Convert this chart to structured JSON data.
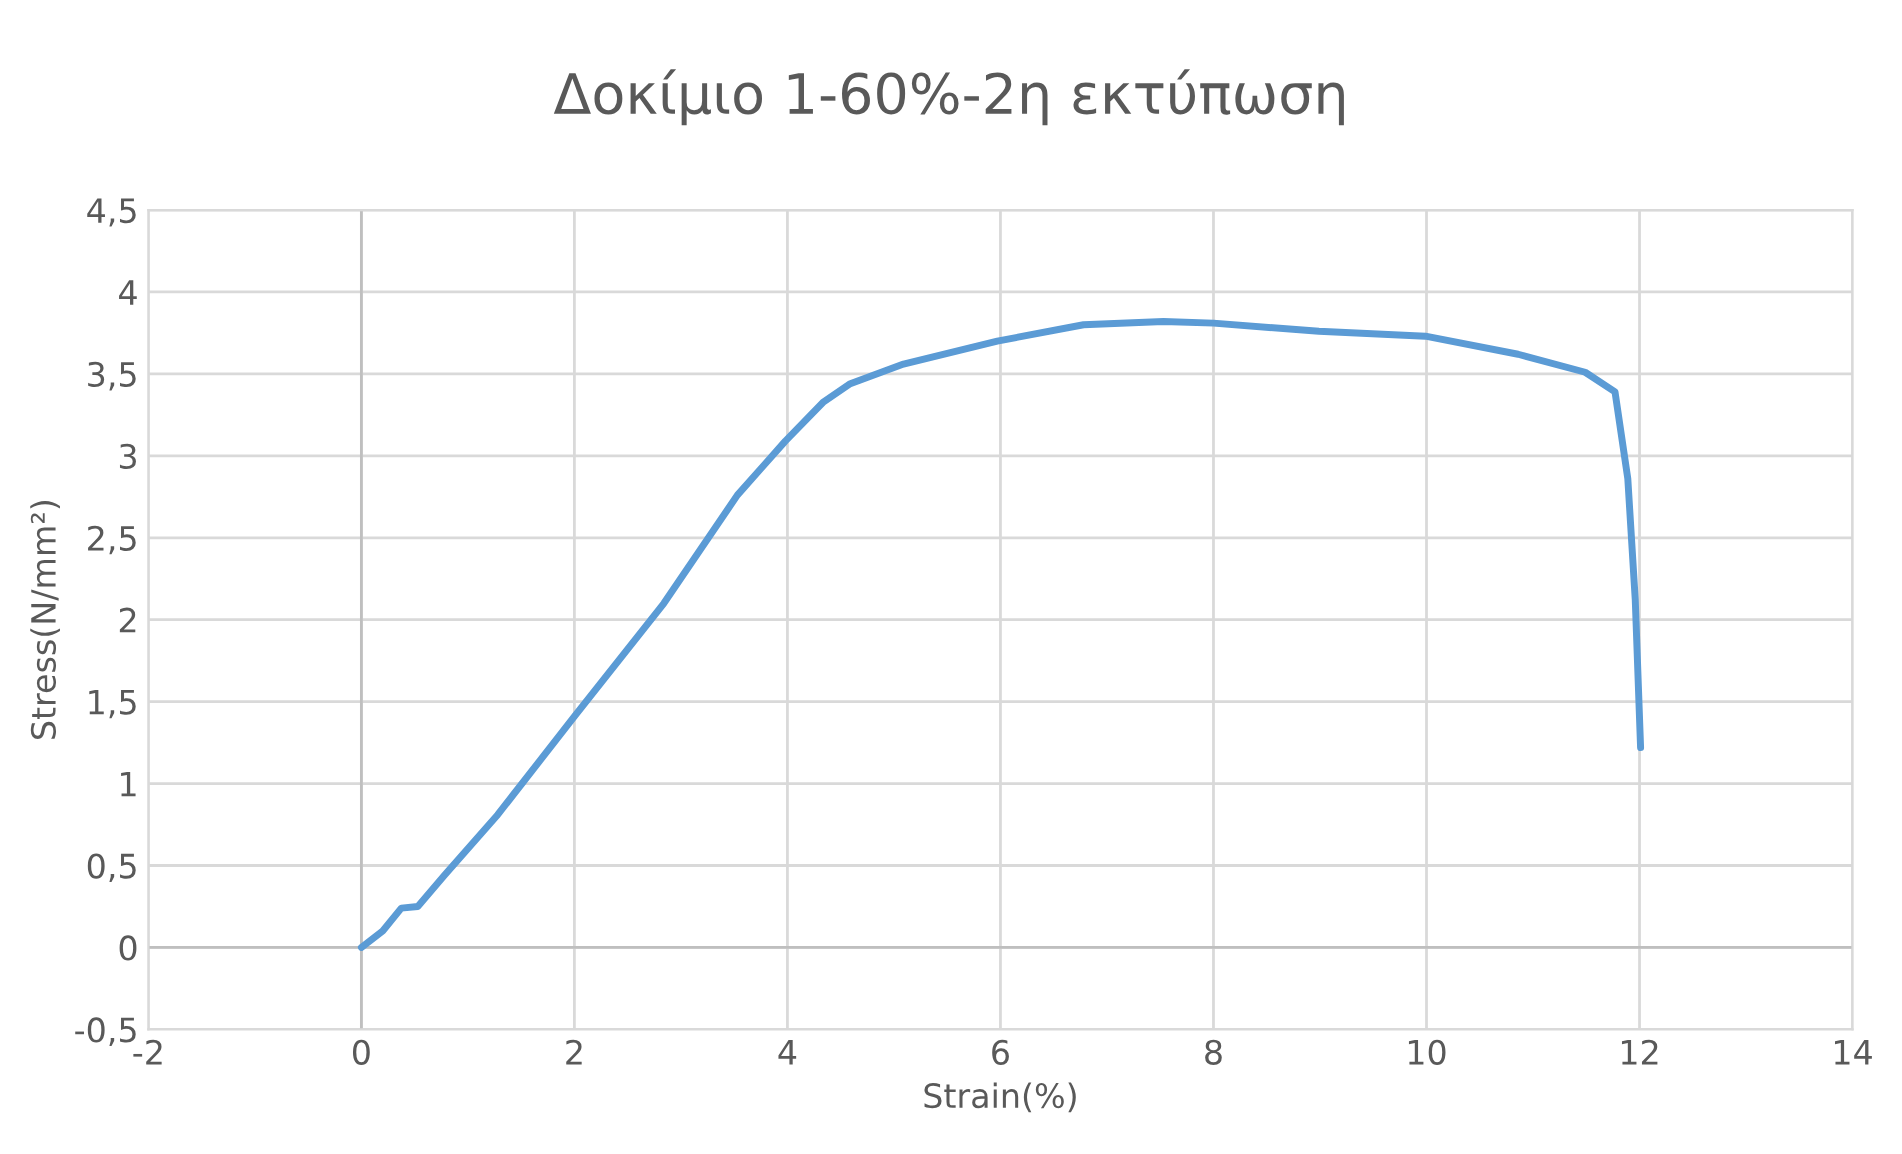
{
  "chart_data": {
    "type": "line",
    "title": "Δοκίμιο 1-60%-2η εκτύπωση",
    "xlabel": "Strain(%)",
    "ylabel": "Stress(N/mm²)",
    "series": [
      {
        "color": "#5b9bd5",
        "x": [
          0,
          0.2,
          0.375,
          0.53,
          0.78,
          1.28,
          2.0,
          2.84,
          3.53,
          3.98,
          4.34,
          4.59,
          5.09,
          5.97,
          6.78,
          7.53,
          8.0,
          8.99,
          9.99,
          10.86,
          11.49,
          11.77,
          11.89,
          11.96,
          12.01
        ],
        "values": [
          0,
          0.1,
          0.24,
          0.25,
          0.44,
          0.81,
          1.41,
          2.1,
          2.76,
          3.09,
          3.33,
          3.44,
          3.56,
          3.7,
          3.8,
          3.82,
          3.81,
          3.76,
          3.73,
          3.62,
          3.51,
          3.39,
          2.86,
          2.12,
          1.22
        ]
      }
    ],
    "xlim": [
      -2,
      14
    ],
    "xticks": [
      -2,
      0,
      2,
      4,
      6,
      8,
      10,
      12,
      14
    ],
    "ylim": [
      -0.5,
      4.5
    ],
    "yticks": [
      {
        "value": -0.5,
        "label": "-0,5"
      },
      0,
      {
        "value": 0.5,
        "label": "0,5"
      },
      1,
      {
        "value": 1.5,
        "label": "1,5"
      },
      2,
      {
        "value": 2.5,
        "label": "2,5"
      },
      3,
      {
        "value": 3.5,
        "label": "3,5"
      },
      4,
      {
        "value": 4.5,
        "label": "4,5"
      }
    ],
    "grid": true
  }
}
